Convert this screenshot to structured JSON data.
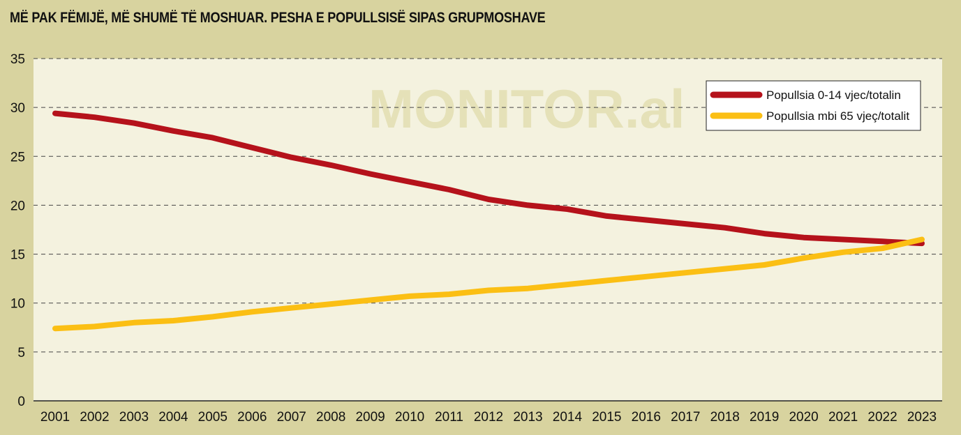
{
  "chart_data": {
    "type": "line",
    "title": "MË PAK FËMIJË, MË SHUMË TË MOSHUAR. PESHA E POPULLSISË SIPAS GRUPMOSHAVE",
    "watermark": "MONITOR.al",
    "categories": [
      "2001",
      "2002",
      "2003",
      "2004",
      "2005",
      "2006",
      "2007",
      "2008",
      "2009",
      "2010",
      "2011",
      "2012",
      "2013",
      "2014",
      "2015",
      "2016",
      "2017",
      "2018",
      "2019",
      "2020",
      "2021",
      "2022",
      "2023"
    ],
    "series": [
      {
        "name": "Popullsia 0-14 vjec/totalin",
        "color": "#b5121b",
        "values": [
          29.4,
          29.0,
          28.4,
          27.6,
          26.9,
          25.9,
          24.9,
          24.1,
          23.2,
          22.4,
          21.6,
          20.6,
          20.0,
          19.6,
          18.9,
          18.5,
          18.1,
          17.7,
          17.1,
          16.7,
          16.5,
          16.3,
          16.1
        ]
      },
      {
        "name": "Popullsia mbi 65 vjeç/totalit",
        "color": "#fbbf14",
        "values": [
          7.4,
          7.6,
          8.0,
          8.2,
          8.6,
          9.1,
          9.5,
          9.9,
          10.3,
          10.7,
          10.9,
          11.3,
          11.5,
          11.9,
          12.3,
          12.7,
          13.1,
          13.5,
          13.9,
          14.6,
          15.2,
          15.6,
          16.5
        ]
      }
    ],
    "ylim": [
      0,
      35
    ],
    "yticks": [
      0,
      5,
      10,
      15,
      20,
      25,
      30,
      35
    ],
    "grid": true,
    "legend_position": "top-right",
    "colors": {
      "background": "#d8d39f",
      "plot_area": "#f4f2df",
      "grid": "#444444"
    }
  }
}
